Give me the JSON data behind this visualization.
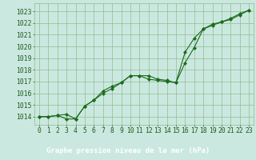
{
  "xlabel": "Graphe pression niveau de la mer (hPa)",
  "x_ticks": [
    0,
    1,
    2,
    3,
    4,
    5,
    6,
    7,
    8,
    9,
    10,
    11,
    12,
    13,
    14,
    15,
    16,
    17,
    18,
    19,
    20,
    21,
    22,
    23
  ],
  "y_ticks": [
    1014,
    1015,
    1016,
    1017,
    1018,
    1019,
    1020,
    1021,
    1022,
    1023
  ],
  "ylim": [
    1013.3,
    1023.7
  ],
  "xlim": [
    -0.5,
    23.5
  ],
  "line1_x": [
    0,
    1,
    2,
    3,
    4,
    5,
    6,
    7,
    8,
    9,
    10,
    11,
    12,
    13,
    14,
    15,
    16,
    17,
    18,
    19,
    20,
    21,
    22,
    23
  ],
  "line1_y": [
    1014.0,
    1014.0,
    1014.1,
    1014.2,
    1013.8,
    1014.9,
    1015.4,
    1016.2,
    1016.6,
    1016.9,
    1017.5,
    1017.5,
    1017.2,
    1017.1,
    1017.0,
    1016.9,
    1018.6,
    1019.9,
    1021.5,
    1021.8,
    1022.1,
    1022.3,
    1022.7,
    1023.1
  ],
  "line2_x": [
    0,
    1,
    2,
    3,
    4,
    5,
    6,
    7,
    8,
    9,
    10,
    11,
    12,
    13,
    14,
    15,
    16,
    17,
    18,
    19,
    20,
    21,
    22,
    23
  ],
  "line2_y": [
    1014.0,
    1014.0,
    1014.1,
    1013.8,
    1013.8,
    1014.9,
    1015.4,
    1016.0,
    1016.4,
    1016.9,
    1017.5,
    1017.5,
    1017.5,
    1017.2,
    1017.1,
    1016.9,
    1019.5,
    1020.7,
    1021.5,
    1021.9,
    1022.1,
    1022.4,
    1022.8,
    1023.1
  ],
  "line_color": "#1a6b1a",
  "marker": "D",
  "marker_size": 2.2,
  "plot_bg_color": "#cbe8e0",
  "bottom_bg_color": "#2e7d4f",
  "grid_color": "#8fbc8f",
  "text_color": "#1a5c1a",
  "tick_color": "#1a5c1a",
  "label_color": "#ffffff",
  "font_size_label": 6.5,
  "font_size_tick": 5.8
}
